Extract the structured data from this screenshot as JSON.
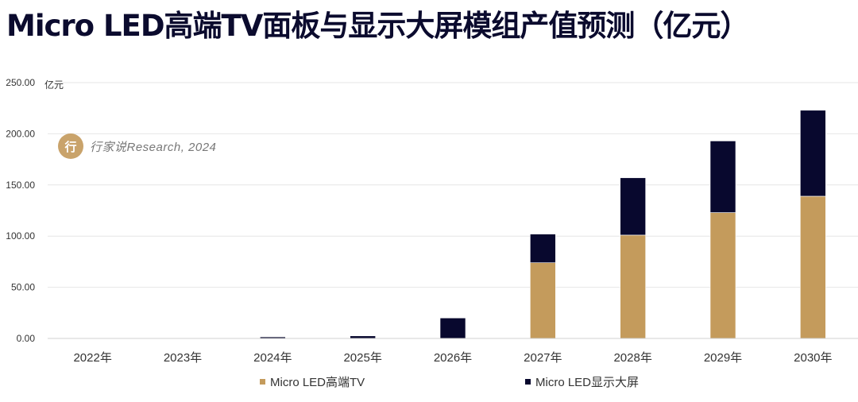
{
  "title": "Micro LED高端TV面板与显示大屏模组产值预测（亿元）",
  "watermark": {
    "logo_text": "行",
    "text": "行家说Research, 2024"
  },
  "colors": {
    "tv": "#c49b5c",
    "screen": "#08082e",
    "grid": "#e6e6e6"
  },
  "chart_data": {
    "type": "bar",
    "stacked": true,
    "categories": [
      "2022年",
      "2023年",
      "2024年",
      "2025年",
      "2026年",
      "2027年",
      "2028年",
      "2029年",
      "2030年"
    ],
    "series": [
      {
        "name": "Micro LED高端TV",
        "values": [
          0,
          0,
          0,
          0,
          0,
          74,
          101,
          123,
          139
        ]
      },
      {
        "name": "Micro LED显示大屏",
        "values": [
          0,
          0,
          1.5,
          2.5,
          20,
          28,
          56,
          70,
          84
        ]
      }
    ],
    "ylim": [
      0,
      250
    ],
    "yticks": [
      "0.00",
      "50.00",
      "100.00",
      "150.00",
      "200.00",
      "250.00"
    ],
    "ylabel": "亿元",
    "grid": true,
    "legend": "bottom"
  }
}
